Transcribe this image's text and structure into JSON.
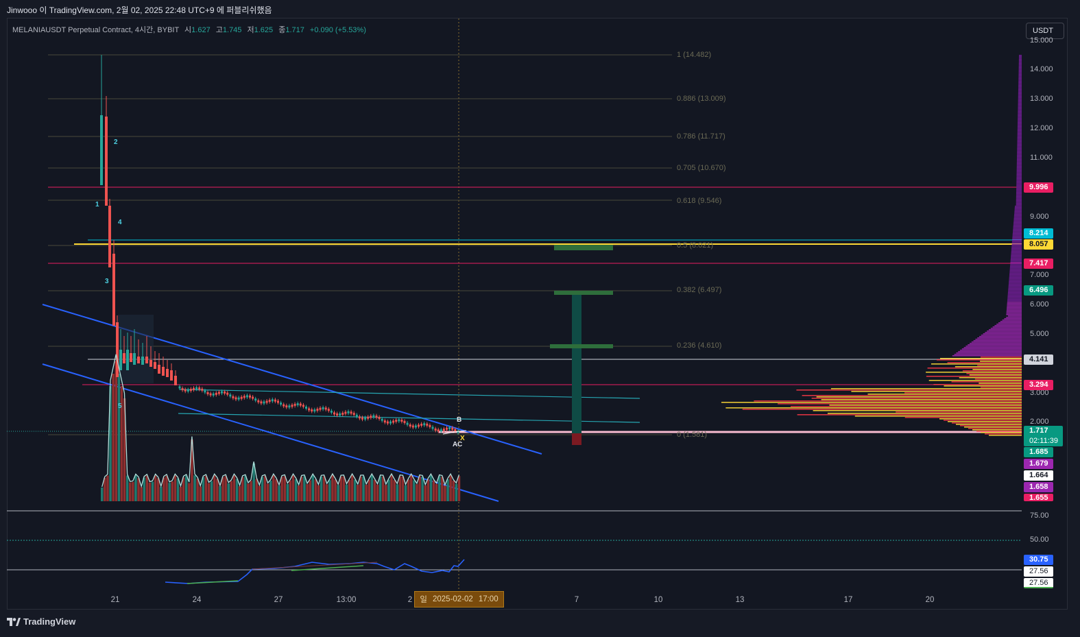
{
  "header": {
    "caption": "Jinwooo 이 TradingView.com, 2월 02, 2025 22:48 UTC+9 에 퍼블리쉬했음"
  },
  "legend": {
    "symbol": "MELANIAUSDT Perpetual Contract, 4시간, BYBIT",
    "open_label": "시",
    "open": "1.627",
    "high_label": "고",
    "high": "1.745",
    "low_label": "저",
    "low": "1.625",
    "close_label": "종",
    "close": "1.717",
    "change": "+0.090 (+5.53%)"
  },
  "currency_button": "USDT",
  "price_axis": [
    "15.000",
    "14.000",
    "13.000",
    "12.000",
    "11.000",
    "9.000",
    "7.000",
    "6.000",
    "5.000",
    "3.000",
    "2.000"
  ],
  "price_tags": [
    {
      "text": "9.996",
      "color": "#e91e63"
    },
    {
      "text": "8.214",
      "color": "#00bcd4"
    },
    {
      "text": "8.057",
      "color": "#fdd835"
    },
    {
      "text": "7.417",
      "color": "#e91e63"
    },
    {
      "text": "6.496",
      "color": "#089981"
    },
    {
      "text": "4.141",
      "color": "#d1d4dc"
    },
    {
      "text": "3.294",
      "color": "#e91e63"
    },
    {
      "text": "1.717",
      "color": "#089981"
    },
    {
      "text": "02:11:39",
      "color": "#089981"
    },
    {
      "text": "1.685",
      "color": "#089981"
    },
    {
      "text": "1.679",
      "color": "#9c27b0"
    },
    {
      "text": "1.664",
      "color": "#ffffff"
    },
    {
      "text": "1.658",
      "color": "#9c27b0"
    },
    {
      "text": "1.655",
      "color": "#e91e63"
    }
  ],
  "fib_levels": [
    {
      "text": "1 (14.482)"
    },
    {
      "text": "0.886 (13.009)"
    },
    {
      "text": "0.786 (11.717)"
    },
    {
      "text": "0.705 (10.670)"
    },
    {
      "text": "0.618 (9.546)"
    },
    {
      "text": "0.5 (8.021)"
    },
    {
      "text": "0.382 (6.497)"
    },
    {
      "text": "0.236 (4.610)"
    },
    {
      "text": "0 (1.581)"
    }
  ],
  "wave_labels": [
    "1",
    "2",
    "3",
    "4",
    "5"
  ],
  "point_labels": [
    "B",
    "A",
    "C",
    "X"
  ],
  "rsi_axis": [
    "75.00",
    "50.00"
  ],
  "rsi_tags": [
    {
      "text": "30.75",
      "color": "#2962ff"
    },
    {
      "text": "27.56",
      "color": "#ffffff"
    },
    {
      "text": "27.56",
      "color": "#ffffff"
    }
  ],
  "time_axis": [
    "21",
    "24",
    "27",
    "13:00",
    "2",
    "7",
    "10",
    "13",
    "17",
    "20"
  ],
  "crosshair_time": {
    "day": "일",
    "date": "2025-02-02",
    "time": "17:00"
  },
  "footer": {
    "brand": "TradingView"
  },
  "colors": {
    "background": "#131722",
    "up": "#26a69a",
    "down": "#ef5350",
    "channel": "#2962ff",
    "fib": "#7a7856",
    "yellow_line": "#fdd835",
    "volume_profile_purple": "#9c27b0",
    "volume_profile_yellow": "#fdd835",
    "volume_profile_red": "#f23645"
  }
}
